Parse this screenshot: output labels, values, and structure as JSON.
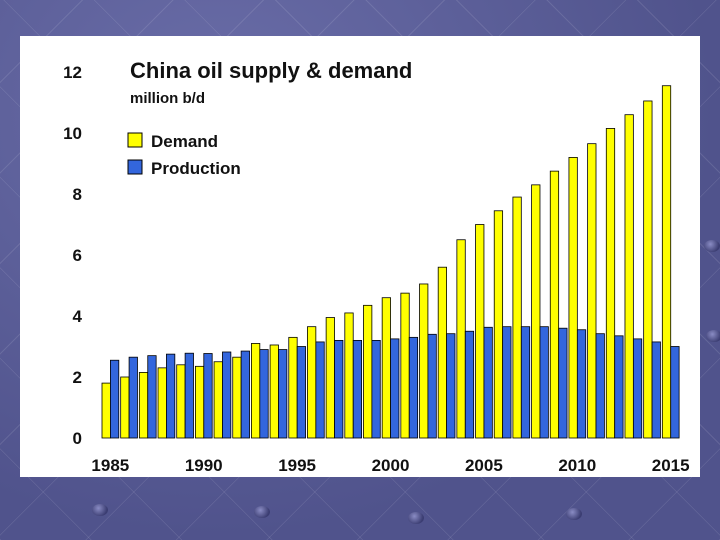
{
  "chart_data": {
    "type": "bar",
    "title": "China oil supply & demand",
    "subtitle": "million b/d",
    "x": [
      1985,
      1986,
      1987,
      1988,
      1989,
      1990,
      1991,
      1992,
      1993,
      1994,
      1995,
      1996,
      1997,
      1998,
      1999,
      2000,
      2001,
      2002,
      2003,
      2004,
      2005,
      2006,
      2007,
      2008,
      2009,
      2010,
      2011,
      2012,
      2013,
      2014,
      2015
    ],
    "x_tick_labels": [
      "1985",
      "1990",
      "1995",
      "2000",
      "2005",
      "2010",
      "2015"
    ],
    "y_tick_labels": [
      "0",
      "2",
      "4",
      "6",
      "8",
      "10",
      "12"
    ],
    "ylim": [
      0,
      12
    ],
    "legend_position": "top-left",
    "series": [
      {
        "name": "Demand",
        "color": "#ffff00",
        "values": [
          1.8,
          2.0,
          2.15,
          2.3,
          2.4,
          2.35,
          2.5,
          2.65,
          3.1,
          3.05,
          3.3,
          3.65,
          3.95,
          4.1,
          4.35,
          4.6,
          4.75,
          5.05,
          5.6,
          6.5,
          7.0,
          7.45,
          7.9,
          8.3,
          8.75,
          9.2,
          9.65,
          10.15,
          10.6,
          11.05,
          11.55
        ]
      },
      {
        "name": "Production",
        "color": "#3366dd",
        "values": [
          2.55,
          2.65,
          2.7,
          2.75,
          2.78,
          2.77,
          2.82,
          2.85,
          2.9,
          2.9,
          3.0,
          3.15,
          3.2,
          3.2,
          3.2,
          3.25,
          3.3,
          3.4,
          3.42,
          3.5,
          3.63,
          3.65,
          3.65,
          3.65,
          3.6,
          3.55,
          3.42,
          3.35,
          3.25,
          3.15,
          3.0
        ]
      }
    ]
  }
}
